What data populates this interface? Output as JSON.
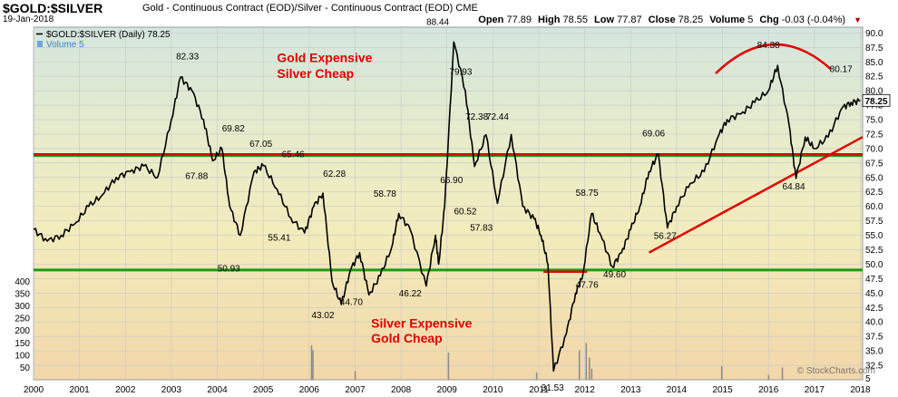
{
  "header": {
    "symbol": "$GOLD:$SILVER",
    "description": "Gold - Continuous Contract (EOD)/Silver - Continuous Contract (EOD) CME",
    "date": "19-Jan-2018",
    "ohlc": [
      {
        "label": "Open",
        "value": "77.89"
      },
      {
        "label": "High",
        "value": "78.55"
      },
      {
        "label": "Low",
        "value": "77.87"
      },
      {
        "label": "Close",
        "value": "78.25"
      },
      {
        "label": "Volume",
        "value": "5"
      },
      {
        "label": "Chg",
        "value": "-0.03 (-0.04%)"
      }
    ],
    "change_arrow": "▼"
  },
  "chart_data": {
    "type": "line",
    "legend": [
      {
        "name": "$GOLD:$SILVER (Daily) 78.25",
        "color": "#000000"
      },
      {
        "name": "Volume 5",
        "color": "#6fa8dc"
      }
    ],
    "watermark": "© StockCharts.com",
    "last_value_label": "78.25",
    "xlim": [
      2000.0,
      2018.05
    ],
    "ylim": [
      30.0,
      91.0
    ],
    "x_ticks": [
      "2000",
      "2001",
      "2002",
      "2003",
      "2004",
      "2005",
      "2006",
      "2007",
      "2008",
      "2009",
      "2010",
      "2011",
      "2012",
      "2013",
      "2014",
      "2015",
      "2016",
      "2017",
      "2018"
    ],
    "y_ticks": [
      32.5,
      35.0,
      37.5,
      40.0,
      42.5,
      45.0,
      47.5,
      50.0,
      52.5,
      55.0,
      57.5,
      60.0,
      62.5,
      65.0,
      67.5,
      70.0,
      72.5,
      75.0,
      77.5,
      80.0,
      82.5,
      85.0,
      87.5,
      90.0
    ],
    "volume_ticks": [
      50,
      100,
      150,
      200,
      250,
      300,
      350,
      400
    ],
    "volume_bottom_label": "5",
    "ratio_series": {
      "x": [
        2000.0,
        2000.3,
        2000.6,
        2000.9,
        2001.2,
        2001.5,
        2001.8,
        2002.1,
        2002.4,
        2002.7,
        2003.0,
        2003.2,
        2003.45,
        2003.7,
        2003.9,
        2004.1,
        2004.27,
        2004.5,
        2004.8,
        2005.0,
        2005.3,
        2005.6,
        2005.9,
        2006.1,
        2006.3,
        2006.5,
        2006.7,
        2006.9,
        2007.1,
        2007.3,
        2007.55,
        2007.8,
        2007.95,
        2008.2,
        2008.55,
        2008.75,
        2008.82,
        2008.95,
        2009.15,
        2009.4,
        2009.6,
        2009.85,
        2010.1,
        2010.4,
        2010.65,
        2010.9,
        2011.05,
        2011.2,
        2011.32,
        2011.6,
        2011.8,
        2011.95,
        2012.15,
        2012.35,
        2012.6,
        2012.8,
        2013.0,
        2013.2,
        2013.4,
        2013.6,
        2013.8,
        2014.0,
        2014.3,
        2014.6,
        2014.9,
        2015.1,
        2015.4,
        2015.7,
        2016.0,
        2016.2,
        2016.45,
        2016.6,
        2016.8,
        2017.0,
        2017.3,
        2017.6,
        2017.8,
        2018.0
      ],
      "y": [
        56,
        54,
        55,
        57,
        60,
        62,
        65,
        66,
        67,
        65,
        75,
        82.33,
        80,
        75,
        67.88,
        70,
        60,
        55,
        66,
        67.05,
        63,
        58,
        55.41,
        60,
        62.28,
        47,
        43.02,
        49,
        52,
        44.7,
        48,
        53,
        58.78,
        56,
        46.22,
        55,
        50,
        60,
        88.44,
        80,
        66.9,
        72.38,
        60.52,
        72.44,
        60,
        57.83,
        55,
        50,
        31.53,
        38,
        45,
        47.76,
        58.75,
        55,
        49.6,
        52,
        56,
        60,
        66,
        69.06,
        56.27,
        60,
        64,
        66,
        72,
        75,
        76,
        78,
        80,
        84.38,
        74,
        64.84,
        72,
        70,
        72,
        77,
        78,
        78.25
      ]
    },
    "red_hlines": [
      69.0
    ],
    "green_hlines": [
      68.8,
      49.0
    ],
    "red_trendline": {
      "x": [
        2013.4,
        2018.05
      ],
      "y": [
        52.0,
        72.0
      ]
    },
    "red_support_segment": {
      "x": [
        2011.1,
        2012.05
      ],
      "y": [
        48.7,
        48.7
      ]
    },
    "peak_arc": {
      "x": [
        2014.85,
        2016.1,
        2017.35
      ],
      "y": [
        83.0,
        89.8,
        83.8
      ]
    },
    "annotations": [
      {
        "text": "Gold Expensive",
        "x": 2005.3,
        "y": 85.0,
        "color": "#e00000"
      },
      {
        "text": "Silver Cheap",
        "x": 2005.3,
        "y": 82.2,
        "color": "#e00000"
      },
      {
        "text": "Silver Expensive",
        "x": 2007.35,
        "y": 39.0,
        "color": "#e00000"
      },
      {
        "text": "Gold Cheap",
        "x": 2007.35,
        "y": 36.4,
        "color": "#e00000"
      }
    ],
    "point_labels": [
      {
        "text": "82.33",
        "x": 2003.35,
        "y": 85.4
      },
      {
        "text": "69.82",
        "x": 2004.35,
        "y": 73.0
      },
      {
        "text": "67.88",
        "x": 2003.55,
        "y": 64.7
      },
      {
        "text": "67.05",
        "x": 2004.95,
        "y": 70.3
      },
      {
        "text": "65.46",
        "x": 2005.65,
        "y": 68.5
      },
      {
        "text": "62.28",
        "x": 2006.55,
        "y": 65.1
      },
      {
        "text": "55.41",
        "x": 2005.35,
        "y": 54.1
      },
      {
        "text": "58.78",
        "x": 2007.65,
        "y": 61.7
      },
      {
        "text": "50.93",
        "x": 2004.25,
        "y": 48.7
      },
      {
        "text": "44.70",
        "x": 2006.92,
        "y": 42.9
      },
      {
        "text": "43.02",
        "x": 2006.3,
        "y": 40.7
      },
      {
        "text": "46.22",
        "x": 2008.2,
        "y": 44.4
      },
      {
        "text": "88.44",
        "x": 2008.8,
        "y": 91.4
      },
      {
        "text": "79.93",
        "x": 2009.3,
        "y": 82.8
      },
      {
        "text": "72.38",
        "x": 2009.65,
        "y": 75.0
      },
      {
        "text": "72.44",
        "x": 2010.1,
        "y": 75.0
      },
      {
        "text": "66.90",
        "x": 2009.1,
        "y": 64.0
      },
      {
        "text": "60.52",
        "x": 2009.4,
        "y": 58.6
      },
      {
        "text": "57.83",
        "x": 2009.75,
        "y": 55.8
      },
      {
        "text": "31.53",
        "x": 2011.3,
        "y": 28.1
      },
      {
        "text": "47.76",
        "x": 2012.05,
        "y": 45.9
      },
      {
        "text": "58.75",
        "x": 2012.05,
        "y": 61.8
      },
      {
        "text": "49.60",
        "x": 2012.65,
        "y": 47.7
      },
      {
        "text": "69.06",
        "x": 2013.5,
        "y": 72.1
      },
      {
        "text": "56.27",
        "x": 2013.75,
        "y": 54.4
      },
      {
        "text": "84.38",
        "x": 2016.0,
        "y": 87.4
      },
      {
        "text": "64.84",
        "x": 2016.55,
        "y": 62.9
      },
      {
        "text": "80.17",
        "x": 2017.58,
        "y": 83.2
      }
    ],
    "volume_spikes": [
      {
        "x": 2006.05,
        "v": 140
      },
      {
        "x": 2006.08,
        "v": 120
      },
      {
        "x": 2009.03,
        "v": 110
      },
      {
        "x": 2011.88,
        "v": 120
      },
      {
        "x": 2012.03,
        "v": 150
      },
      {
        "x": 2012.1,
        "v": 90
      },
      {
        "x": 2012.15,
        "v": 45
      },
      {
        "x": 2014.98,
        "v": 55
      },
      {
        "x": 2016.3,
        "v": 50
      },
      {
        "x": 2007.0,
        "v": 35
      },
      {
        "x": 2010.95,
        "v": 30
      },
      {
        "x": 2016.0,
        "v": 20
      }
    ]
  }
}
